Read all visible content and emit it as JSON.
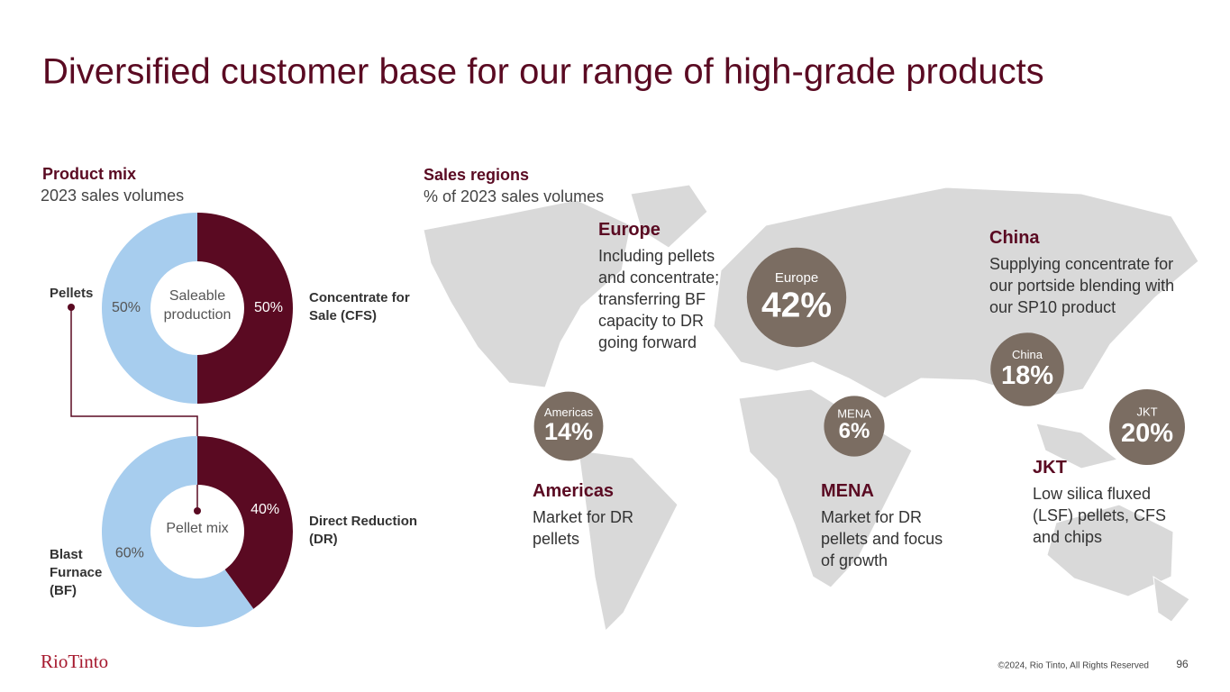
{
  "title": "Diversified customer base for our range of high-grade products",
  "chart_data": [
    {
      "type": "donut",
      "title": "Product mix",
      "subtitle": "2023 sales volumes",
      "center_label": "Saleable production",
      "categories": [
        "Concentrate for Sale (CFS)",
        "Pellets"
      ],
      "values": [
        50,
        50
      ],
      "value_labels": [
        "50%",
        "50%"
      ],
      "colors": [
        "#5a0a22",
        "#a7cdee"
      ]
    },
    {
      "type": "donut",
      "center_label": "Pellet mix",
      "categories": [
        "Direct Reduction (DR)",
        "Blast Furnace (BF)"
      ],
      "values": [
        40,
        60
      ],
      "value_labels": [
        "40%",
        "60%"
      ],
      "colors": [
        "#5a0a22",
        "#a7cdee"
      ]
    },
    {
      "type": "bubble",
      "title": "Sales regions",
      "subtitle": "% of 2023 sales volumes",
      "categories": [
        "Europe",
        "Americas",
        "MENA",
        "China",
        "JKT"
      ],
      "values": [
        42,
        14,
        6,
        18,
        20
      ],
      "value_labels": [
        "42%",
        "14%",
        "6%",
        "18%",
        "20%"
      ],
      "color": "#7b6d62"
    }
  ],
  "region_notes": [
    "Including pellets and concentrate; transferring BF capacity to DR going forward",
    "Market for DR pellets",
    "Market for DR pellets and focus of growth",
    "Supplying concentrate for our portside blending with our SP10 product",
    "Low silica fluxed (LSF) pellets, CFS and chips"
  ],
  "footer": {
    "logo": "RioTinto",
    "copyright": "©2024, Rio Tinto, All Rights Reserved",
    "page": "96"
  }
}
